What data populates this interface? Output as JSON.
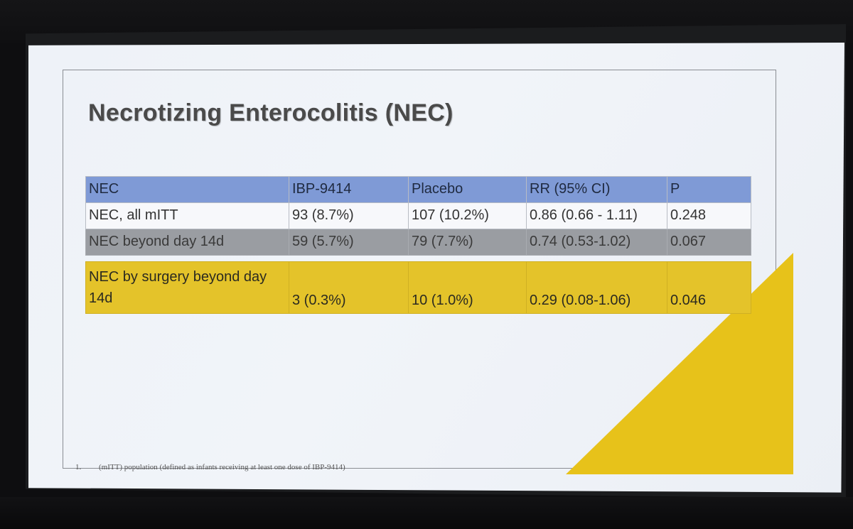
{
  "slide": {
    "title": "Necrotizing Enterocolitis (NEC)",
    "footnote_number": "1.",
    "footnote_text": "(mITT) population (defined as infants receiving at least one dose of IBP-9414)"
  },
  "table": {
    "headers": [
      "NEC",
      "IBP-9414",
      "Placebo",
      "RR (95% CI)",
      "P"
    ],
    "rows": [
      [
        "NEC, all mITT",
        "93 (8.7%)",
        "107 (10.2%)",
        "0.86 (0.66 - 1.11)",
        "0.248"
      ],
      [
        "NEC beyond day 14d",
        "59 (5.7%)",
        "79 (7.7%)",
        "0.74 (0.53-1.02)",
        "0.067"
      ],
      [
        "NEC by surgery beyond day 14d",
        "3 (0.3%)",
        "10 (1.0%)",
        "0.29 (0.08-1.06)",
        "0.046"
      ]
    ]
  },
  "colors": {
    "header_blue": "#7f9ad6",
    "row_gray": "#9a9da2",
    "highlight_yellow": "#e4c32a",
    "accent_yellow": "#e7c21a"
  }
}
